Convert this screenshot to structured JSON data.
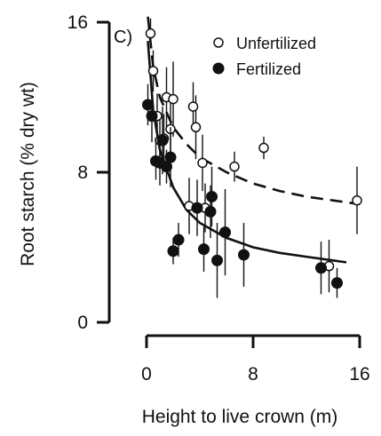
{
  "chart_data": {
    "type": "scatter",
    "panel_label": "C)",
    "title": "",
    "xlabel": "Height to live crown (m)",
    "ylabel": "Root starch (% dry wt)",
    "xlim": [
      0,
      16
    ],
    "ylim": [
      0,
      16
    ],
    "x_ticks": [
      0,
      8,
      16
    ],
    "y_ticks": [
      0,
      8,
      16
    ],
    "legend_position": "top-right",
    "series": [
      {
        "name": "Unfertilized",
        "marker": "open-circle",
        "color": "#111111",
        "fit": "dashed",
        "fit_curve": {
          "x": [
            0.1,
            0.5,
            1,
            2,
            3,
            4,
            6,
            8,
            10,
            12,
            14,
            16
          ],
          "y": [
            16.3,
            13.6,
            12.0,
            10.4,
            9.5,
            8.8,
            8.0,
            7.4,
            7.0,
            6.7,
            6.5,
            6.3
          ]
        },
        "points": [
          {
            "x": 0.3,
            "y": 15.4,
            "err": 0.8
          },
          {
            "x": 0.5,
            "y": 13.4,
            "err": 1.1
          },
          {
            "x": 0.8,
            "y": 11.0,
            "err": 1.2
          },
          {
            "x": 1.0,
            "y": 9.7,
            "err": 1.4
          },
          {
            "x": 1.3,
            "y": 9.8,
            "err": 1.3
          },
          {
            "x": 1.5,
            "y": 12.0,
            "err": 1.6
          },
          {
            "x": 1.8,
            "y": 10.3,
            "err": 1.4
          },
          {
            "x": 2.0,
            "y": 11.9,
            "err": 2.0
          },
          {
            "x": 3.2,
            "y": 6.2,
            "err": 1.5
          },
          {
            "x": 3.5,
            "y": 11.5,
            "err": 1.3
          },
          {
            "x": 3.7,
            "y": 10.4,
            "err": 1.7
          },
          {
            "x": 4.2,
            "y": 8.5,
            "err": 1.5
          },
          {
            "x": 4.4,
            "y": 6.1,
            "err": 1.3
          },
          {
            "x": 6.6,
            "y": 8.3,
            "err": 0.8
          },
          {
            "x": 8.8,
            "y": 9.3,
            "err": 0.6
          },
          {
            "x": 13.7,
            "y": 3.0,
            "err": 1.4
          },
          {
            "x": 15.8,
            "y": 6.5,
            "err": 1.8
          }
        ]
      },
      {
        "name": "Fertilized",
        "marker": "filled-circle",
        "color": "#111111",
        "fit": "solid",
        "fit_curve": {
          "x": [
            0.1,
            0.5,
            1,
            2,
            3,
            4,
            6,
            8,
            10,
            12,
            14,
            15
          ],
          "y": [
            15.0,
            11.3,
            9.2,
            7.2,
            6.0,
            5.3,
            4.5,
            4.0,
            3.7,
            3.5,
            3.3,
            3.2
          ]
        },
        "points": [
          {
            "x": 0.1,
            "y": 11.6,
            "err": 1.1
          },
          {
            "x": 0.4,
            "y": 11.0,
            "err": 1.4
          },
          {
            "x": 0.7,
            "y": 8.6,
            "err": 1.0
          },
          {
            "x": 1.0,
            "y": 8.5,
            "err": 1.2
          },
          {
            "x": 1.2,
            "y": 9.7,
            "err": 1.8
          },
          {
            "x": 1.5,
            "y": 8.3,
            "err": 0.9
          },
          {
            "x": 1.8,
            "y": 8.8,
            "err": 1.6
          },
          {
            "x": 2.0,
            "y": 3.8,
            "err": 0.7
          },
          {
            "x": 2.4,
            "y": 4.4,
            "err": 0.9
          },
          {
            "x": 3.8,
            "y": 6.1,
            "err": 1.5
          },
          {
            "x": 4.3,
            "y": 3.9,
            "err": 1.2
          },
          {
            "x": 4.8,
            "y": 5.9,
            "err": 1.4
          },
          {
            "x": 4.9,
            "y": 6.7,
            "err": 1.6
          },
          {
            "x": 5.3,
            "y": 3.3,
            "err": 2.0
          },
          {
            "x": 5.9,
            "y": 4.8,
            "err": 2.3
          },
          {
            "x": 7.3,
            "y": 3.6,
            "err": 1.7
          },
          {
            "x": 13.1,
            "y": 2.9,
            "err": 1.4
          },
          {
            "x": 14.3,
            "y": 2.1,
            "err": 0.8
          }
        ]
      }
    ]
  }
}
